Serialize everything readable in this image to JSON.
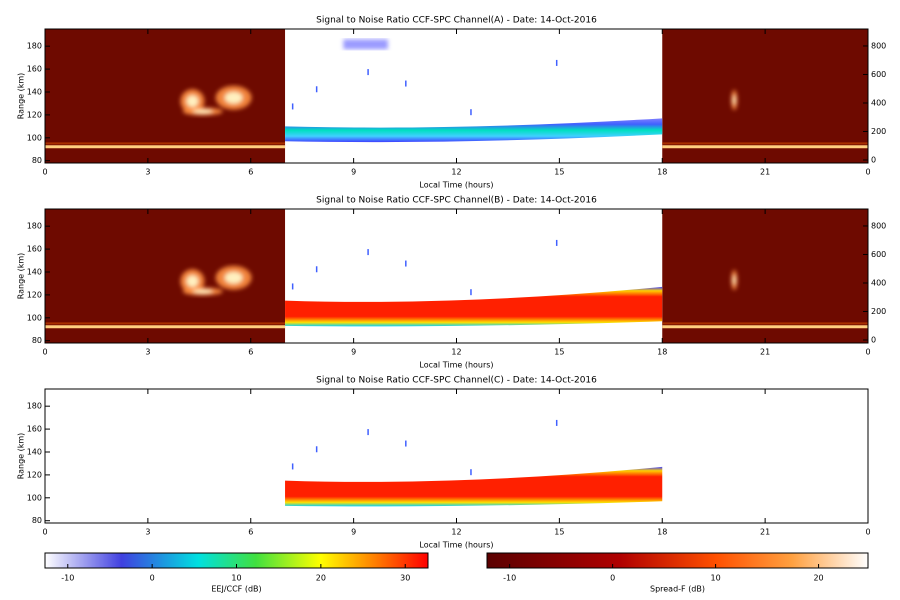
{
  "chart_data": [
    {
      "type": "heatmap",
      "title": "Signal to Noise Ratio CCF-SPC Channel(A) - Date: 14-Oct-2016",
      "ylabel": "Range (km)",
      "xlabel": "Local Time (hours)",
      "xlim": [
        0,
        24
      ],
      "xticks": [
        0,
        3,
        6,
        9,
        12,
        15,
        18,
        21,
        {
          "value": 24,
          "label": "0"
        }
      ],
      "ylim": [
        78,
        195
      ],
      "yticks": [
        80,
        100,
        120,
        140,
        160,
        180
      ],
      "y2lim": [
        -21,
        919
      ],
      "y2ticks": [
        0,
        200,
        400,
        600,
        800
      ]
    },
    {
      "type": "heatmap",
      "title": "Signal to Noise Ratio CCF-SPC Channel(B) - Date: 14-Oct-2016",
      "ylabel": "Range (km)",
      "xlabel": "Local Time (hours)",
      "xlim": [
        0,
        24
      ],
      "xticks": [
        0,
        3,
        6,
        9,
        12,
        15,
        18,
        21,
        {
          "value": 24,
          "label": "0"
        }
      ],
      "ylim": [
        78,
        195
      ],
      "yticks": [
        80,
        100,
        120,
        140,
        160,
        180
      ],
      "y2lim": [
        -21,
        919
      ],
      "y2ticks": [
        0,
        200,
        400,
        600,
        800
      ]
    },
    {
      "type": "heatmap",
      "title": "Signal to Noise Ratio CCF-SPC Channel(C) - Date: 14-Oct-2016",
      "ylabel": "Range (km)",
      "xlabel": "Local Time (hours)",
      "xlim": [
        0,
        24
      ],
      "xticks": [
        0,
        3,
        6,
        9,
        12,
        15,
        18,
        21,
        {
          "value": 24,
          "label": "0"
        }
      ],
      "ylim": [
        78,
        195
      ],
      "yticks": [
        80,
        100,
        120,
        140,
        160,
        180
      ]
    }
  ],
  "colorbars": [
    {
      "label": "EEJ/CCF (dB)",
      "lim": [
        -12.7,
        32.7
      ],
      "ticks": [
        -10,
        0,
        10,
        20,
        30
      ]
    },
    {
      "label": "Spread-F (dB)",
      "lim": [
        -12.2,
        24.8
      ],
      "ticks": [
        -10,
        0,
        10,
        20
      ]
    }
  ]
}
